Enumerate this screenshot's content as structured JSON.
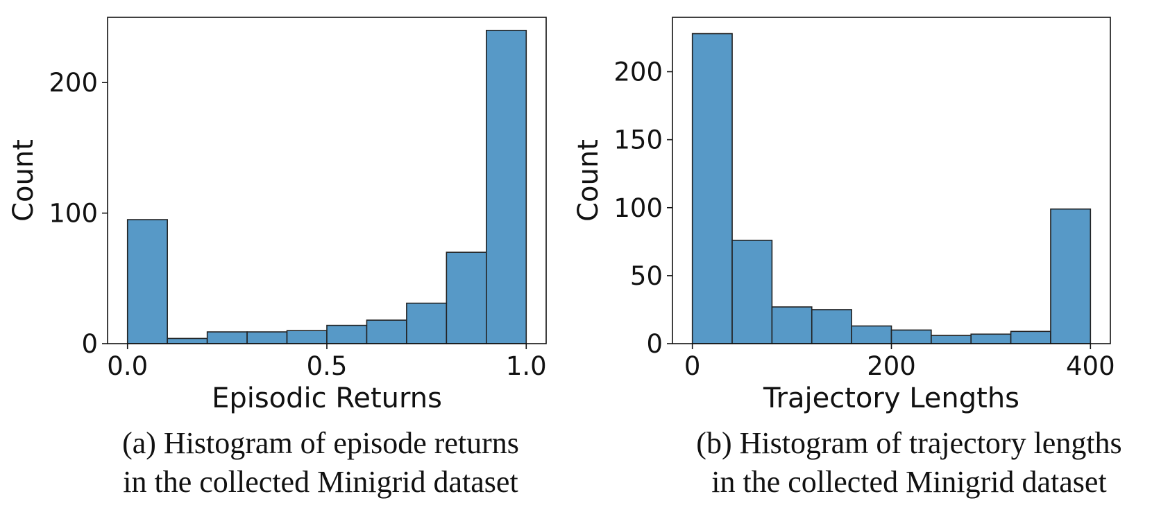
{
  "chart_data": [
    {
      "type": "bar",
      "subtype": "histogram",
      "xlabel": "Episodic Returns",
      "ylabel": "Count",
      "xlim": [
        -0.05,
        1.05
      ],
      "ylim": [
        0,
        250
      ],
      "xticks": [
        0.0,
        0.5,
        1.0
      ],
      "xtick_labels": [
        "0.0",
        "0.5",
        "1.0"
      ],
      "yticks": [
        0,
        100,
        200
      ],
      "ytick_labels": [
        "0",
        "100",
        "200"
      ],
      "bin_edges": [
        0.0,
        0.1,
        0.2,
        0.3,
        0.4,
        0.5,
        0.6,
        0.7,
        0.8,
        0.9,
        1.0
      ],
      "values": [
        95,
        4,
        9,
        9,
        10,
        14,
        18,
        31,
        70,
        240
      ],
      "bar_color": "#5799c7",
      "edge_color": "#222222",
      "grid": false,
      "caption": [
        "(a) Histogram of episode returns",
        "in the collected Minigrid dataset"
      ]
    },
    {
      "type": "bar",
      "subtype": "histogram",
      "xlabel": "Trajectory Lengths",
      "ylabel": "Count",
      "xlim": [
        -20,
        420
      ],
      "ylim": [
        0,
        240
      ],
      "xticks": [
        0,
        200,
        400
      ],
      "xtick_labels": [
        "0",
        "200",
        "400"
      ],
      "yticks": [
        0,
        50,
        100,
        150,
        200
      ],
      "ytick_labels": [
        "0",
        "50",
        "100",
        "150",
        "200"
      ],
      "bin_edges": [
        0,
        40,
        80,
        120,
        160,
        200,
        240,
        280,
        320,
        360,
        400
      ],
      "values": [
        228,
        76,
        27,
        25,
        13,
        10,
        6,
        7,
        9,
        99
      ],
      "bar_color": "#5799c7",
      "edge_color": "#222222",
      "grid": false,
      "caption": [
        "(b) Histogram of trajectory lengths",
        "in the collected Minigrid dataset"
      ]
    }
  ]
}
